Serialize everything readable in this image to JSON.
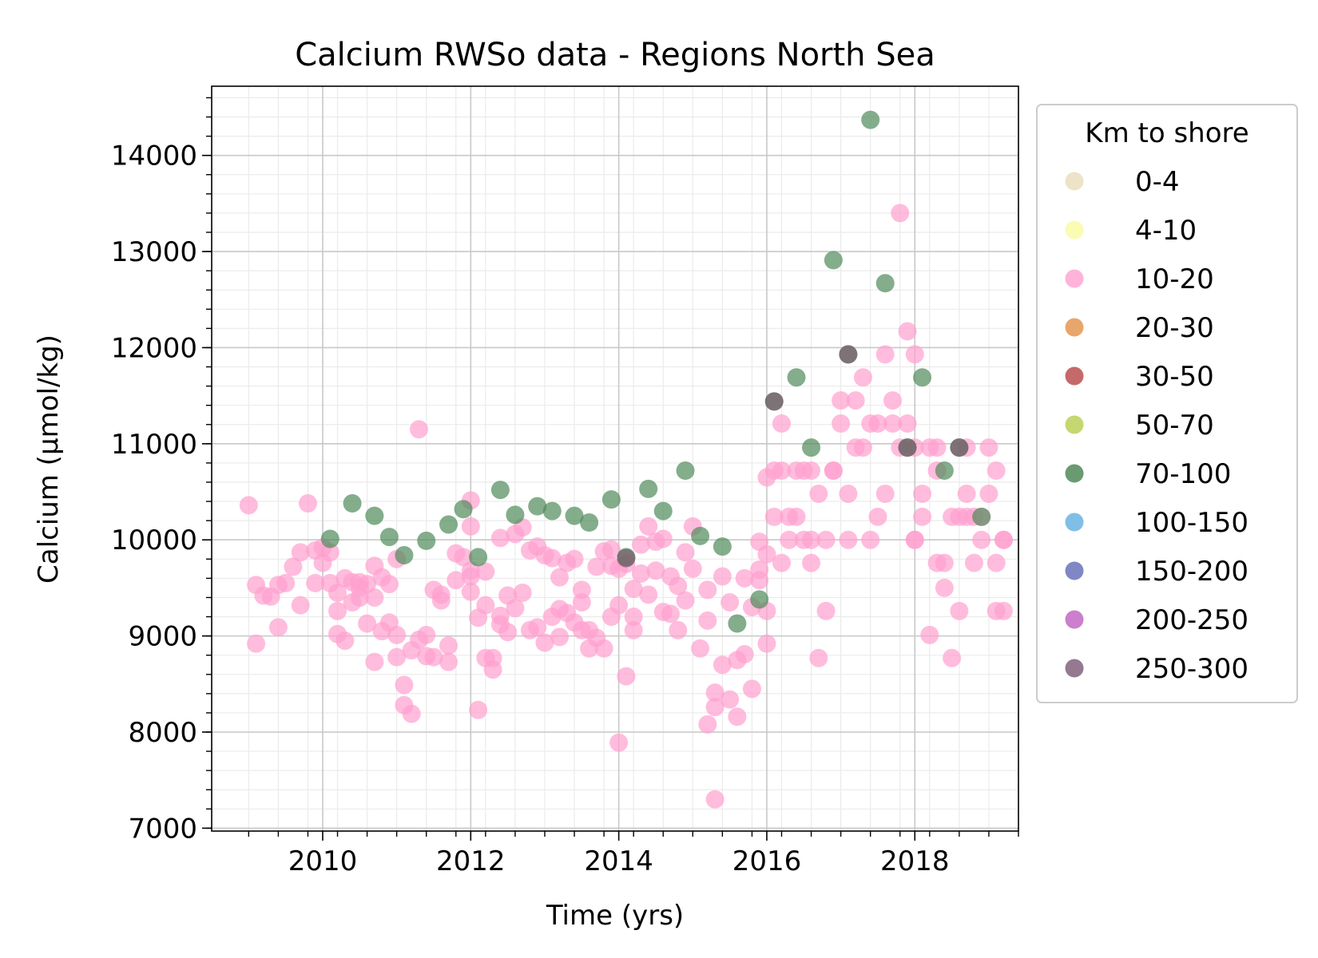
{
  "chart_data": {
    "type": "scatter",
    "title": "Calcium RWSo data - Regions North Sea",
    "xlabel": "Time (yrs)",
    "ylabel": "Calcium (µmol/kg)",
    "xlim": [
      2008.5,
      2019.4
    ],
    "ylim": [
      6970,
      14720
    ],
    "x_ticks": [
      2010,
      2012,
      2014,
      2016,
      2018
    ],
    "y_ticks": [
      7000,
      8000,
      9000,
      10000,
      11000,
      12000,
      13000,
      14000
    ],
    "grid": true,
    "legend": {
      "title": "Km to shore",
      "placement": "outside-right",
      "entries": [
        {
          "label": "0-4",
          "color": "#ede3c8"
        },
        {
          "label": "4-10",
          "color": "#fbfbb4"
        },
        {
          "label": "10-20",
          "color": "#ffb3d9"
        },
        {
          "label": "20-30",
          "color": "#e9a66b"
        },
        {
          "label": "30-50",
          "color": "#c46a6a"
        },
        {
          "label": "50-70",
          "color": "#c4d770"
        },
        {
          "label": "70-100",
          "color": "#6a9a72"
        },
        {
          "label": "100-150",
          "color": "#7fbfe6"
        },
        {
          "label": "150-200",
          "color": "#7f87c5"
        },
        {
          "label": "200-250",
          "color": "#cc7fcc"
        },
        {
          "label": "250-300",
          "color": "#94798f"
        }
      ]
    },
    "series": [
      {
        "name": "10-20",
        "color": "#ff9fcf",
        "points": [
          [
            2009.0,
            10360
          ],
          [
            2009.1,
            9530
          ],
          [
            2009.1,
            8920
          ],
          [
            2009.2,
            9420
          ],
          [
            2009.3,
            9410
          ],
          [
            2009.4,
            9530
          ],
          [
            2009.4,
            9090
          ],
          [
            2009.5,
            9550
          ],
          [
            2009.6,
            9720
          ],
          [
            2009.7,
            9870
          ],
          [
            2009.7,
            9320
          ],
          [
            2009.8,
            10380
          ],
          [
            2009.9,
            9550
          ],
          [
            2009.9,
            9890
          ],
          [
            2010.0,
            9760
          ],
          [
            2010.0,
            9920
          ],
          [
            2010.1,
            9870
          ],
          [
            2010.1,
            9550
          ],
          [
            2010.2,
            9450
          ],
          [
            2010.2,
            9260
          ],
          [
            2010.2,
            9020
          ],
          [
            2010.3,
            9600
          ],
          [
            2010.3,
            8950
          ],
          [
            2010.4,
            9560
          ],
          [
            2010.4,
            9350
          ],
          [
            2010.5,
            9560
          ],
          [
            2010.5,
            9500
          ],
          [
            2010.5,
            9400
          ],
          [
            2010.6,
            9540
          ],
          [
            2010.6,
            9130
          ],
          [
            2010.7,
            9400
          ],
          [
            2010.7,
            8730
          ],
          [
            2010.7,
            9730
          ],
          [
            2010.8,
            9050
          ],
          [
            2010.8,
            9610
          ],
          [
            2010.9,
            9140
          ],
          [
            2010.9,
            9540
          ],
          [
            2011.0,
            8780
          ],
          [
            2011.0,
            9010
          ],
          [
            2011.0,
            9800
          ],
          [
            2011.1,
            8490
          ],
          [
            2011.1,
            8280
          ],
          [
            2011.2,
            8850
          ],
          [
            2011.2,
            8190
          ],
          [
            2011.3,
            8960
          ],
          [
            2011.3,
            11150
          ],
          [
            2011.4,
            8790
          ],
          [
            2011.4,
            9010
          ],
          [
            2011.5,
            9480
          ],
          [
            2011.5,
            8780
          ],
          [
            2011.6,
            9430
          ],
          [
            2011.6,
            9370
          ],
          [
            2011.7,
            8900
          ],
          [
            2011.7,
            8730
          ],
          [
            2011.8,
            9860
          ],
          [
            2011.8,
            9580
          ],
          [
            2011.9,
            9820
          ],
          [
            2012.0,
            9620
          ],
          [
            2012.0,
            9680
          ],
          [
            2012.0,
            10410
          ],
          [
            2012.0,
            10140
          ],
          [
            2012.0,
            9460
          ],
          [
            2012.1,
            8230
          ],
          [
            2012.1,
            9190
          ],
          [
            2012.2,
            8770
          ],
          [
            2012.2,
            9320
          ],
          [
            2012.2,
            9670
          ],
          [
            2012.3,
            8770
          ],
          [
            2012.3,
            8650
          ],
          [
            2012.4,
            9210
          ],
          [
            2012.4,
            10020
          ],
          [
            2012.4,
            9120
          ],
          [
            2012.5,
            9040
          ],
          [
            2012.5,
            9420
          ],
          [
            2012.6,
            9290
          ],
          [
            2012.6,
            10060
          ],
          [
            2012.7,
            9450
          ],
          [
            2012.7,
            10130
          ],
          [
            2012.8,
            9890
          ],
          [
            2012.8,
            9060
          ],
          [
            2012.9,
            9930
          ],
          [
            2012.9,
            9090
          ],
          [
            2013.0,
            9840
          ],
          [
            2013.0,
            8930
          ],
          [
            2013.1,
            9810
          ],
          [
            2013.1,
            9200
          ],
          [
            2013.2,
            9280
          ],
          [
            2013.2,
            8990
          ],
          [
            2013.2,
            9610
          ],
          [
            2013.3,
            9760
          ],
          [
            2013.3,
            9240
          ],
          [
            2013.4,
            9800
          ],
          [
            2013.4,
            9140
          ],
          [
            2013.5,
            9480
          ],
          [
            2013.5,
            9060
          ],
          [
            2013.5,
            9350
          ],
          [
            2013.6,
            9060
          ],
          [
            2013.6,
            8870
          ],
          [
            2013.7,
            9720
          ],
          [
            2013.7,
            8980
          ],
          [
            2013.8,
            8870
          ],
          [
            2013.8,
            9880
          ],
          [
            2013.9,
            9900
          ],
          [
            2013.9,
            9730
          ],
          [
            2013.9,
            9200
          ],
          [
            2014.0,
            9320
          ],
          [
            2014.0,
            7890
          ],
          [
            2014.0,
            9700
          ],
          [
            2014.1,
            8580
          ],
          [
            2014.1,
            9750
          ],
          [
            2014.2,
            9200
          ],
          [
            2014.2,
            9490
          ],
          [
            2014.2,
            9060
          ],
          [
            2014.3,
            9650
          ],
          [
            2014.3,
            9950
          ],
          [
            2014.4,
            9430
          ],
          [
            2014.4,
            10140
          ],
          [
            2014.5,
            9980
          ],
          [
            2014.5,
            9680
          ],
          [
            2014.6,
            9250
          ],
          [
            2014.6,
            10010
          ],
          [
            2014.7,
            9230
          ],
          [
            2014.7,
            9620
          ],
          [
            2014.8,
            9520
          ],
          [
            2014.8,
            9060
          ],
          [
            2014.9,
            9370
          ],
          [
            2014.9,
            9870
          ],
          [
            2015.0,
            10140
          ],
          [
            2015.0,
            9700
          ],
          [
            2015.1,
            8870
          ],
          [
            2015.2,
            8080
          ],
          [
            2015.2,
            9160
          ],
          [
            2015.2,
            9480
          ],
          [
            2015.3,
            8410
          ],
          [
            2015.3,
            8260
          ],
          [
            2015.3,
            7300
          ],
          [
            2015.4,
            9620
          ],
          [
            2015.4,
            8700
          ],
          [
            2015.5,
            8340
          ],
          [
            2015.5,
            9350
          ],
          [
            2015.6,
            8160
          ],
          [
            2015.6,
            8750
          ],
          [
            2015.7,
            8810
          ],
          [
            2015.7,
            9600
          ],
          [
            2015.8,
            8450
          ],
          [
            2015.8,
            9300
          ],
          [
            2015.9,
            9580
          ],
          [
            2015.9,
            9690
          ],
          [
            2015.9,
            9980
          ],
          [
            2016.0,
            9260
          ],
          [
            2016.0,
            8920
          ],
          [
            2016.0,
            9850
          ],
          [
            2016.0,
            10650
          ],
          [
            2016.1,
            10720
          ],
          [
            2016.1,
            10240
          ],
          [
            2016.2,
            11210
          ],
          [
            2016.2,
            10720
          ],
          [
            2016.2,
            9760
          ],
          [
            2016.3,
            10240
          ],
          [
            2016.3,
            10000
          ],
          [
            2016.4,
            10720
          ],
          [
            2016.4,
            10240
          ],
          [
            2016.5,
            10720
          ],
          [
            2016.5,
            10000
          ],
          [
            2016.6,
            10720
          ],
          [
            2016.6,
            9760
          ],
          [
            2016.6,
            10000
          ],
          [
            2016.7,
            10480
          ],
          [
            2016.7,
            8770
          ],
          [
            2016.8,
            9260
          ],
          [
            2016.8,
            10000
          ],
          [
            2016.9,
            10720
          ],
          [
            2016.9,
            10720
          ],
          [
            2017.0,
            11450
          ],
          [
            2017.0,
            11210
          ],
          [
            2017.1,
            10480
          ],
          [
            2017.1,
            10000
          ],
          [
            2017.2,
            11450
          ],
          [
            2017.2,
            10960
          ],
          [
            2017.3,
            11690
          ],
          [
            2017.3,
            10960
          ],
          [
            2017.4,
            10000
          ],
          [
            2017.4,
            11210
          ],
          [
            2017.5,
            10240
          ],
          [
            2017.5,
            11210
          ],
          [
            2017.6,
            11930
          ],
          [
            2017.6,
            10480
          ],
          [
            2017.7,
            11450
          ],
          [
            2017.7,
            11210
          ],
          [
            2017.8,
            13400
          ],
          [
            2017.8,
            10960
          ],
          [
            2017.9,
            12170
          ],
          [
            2017.9,
            11210
          ],
          [
            2018.0,
            11930
          ],
          [
            2018.0,
            10960
          ],
          [
            2018.0,
            10000
          ],
          [
            2018.0,
            10000
          ],
          [
            2018.1,
            10480
          ],
          [
            2018.1,
            10240
          ],
          [
            2018.2,
            9010
          ],
          [
            2018.2,
            10960
          ],
          [
            2018.3,
            10720
          ],
          [
            2018.3,
            9760
          ],
          [
            2018.3,
            10960
          ],
          [
            2018.4,
            9760
          ],
          [
            2018.4,
            9500
          ],
          [
            2018.5,
            8770
          ],
          [
            2018.5,
            10240
          ],
          [
            2018.6,
            9260
          ],
          [
            2018.6,
            10240
          ],
          [
            2018.7,
            10240
          ],
          [
            2018.7,
            10960
          ],
          [
            2018.7,
            10480
          ],
          [
            2018.8,
            9760
          ],
          [
            2018.8,
            10240
          ],
          [
            2018.9,
            10240
          ],
          [
            2018.9,
            10000
          ],
          [
            2019.0,
            10480
          ],
          [
            2019.0,
            10960
          ],
          [
            2019.1,
            9760
          ],
          [
            2019.1,
            10720
          ],
          [
            2019.1,
            9260
          ],
          [
            2019.2,
            9260
          ],
          [
            2019.2,
            10000
          ],
          [
            2019.2,
            10000
          ]
        ]
      },
      {
        "name": "70-100",
        "color": "#4f8a5a",
        "points": [
          [
            2010.1,
            10010
          ],
          [
            2010.4,
            10380
          ],
          [
            2010.7,
            10250
          ],
          [
            2010.9,
            10030
          ],
          [
            2011.1,
            9840
          ],
          [
            2011.4,
            9990
          ],
          [
            2011.7,
            10160
          ],
          [
            2011.9,
            10320
          ],
          [
            2012.1,
            9820
          ],
          [
            2012.4,
            10520
          ],
          [
            2012.6,
            10260
          ],
          [
            2012.9,
            10350
          ],
          [
            2013.1,
            10300
          ],
          [
            2013.4,
            10250
          ],
          [
            2013.6,
            10180
          ],
          [
            2013.9,
            10420
          ],
          [
            2014.1,
            9820
          ],
          [
            2014.4,
            10530
          ],
          [
            2014.6,
            10300
          ],
          [
            2014.9,
            10720
          ],
          [
            2015.1,
            10040
          ],
          [
            2015.4,
            9930
          ],
          [
            2015.6,
            9130
          ],
          [
            2015.9,
            9380
          ],
          [
            2016.1,
            11440
          ],
          [
            2016.4,
            11690
          ],
          [
            2016.6,
            10960
          ],
          [
            2016.9,
            12910
          ],
          [
            2017.1,
            11930
          ],
          [
            2017.4,
            14370
          ],
          [
            2017.6,
            12670
          ],
          [
            2017.9,
            10960
          ],
          [
            2018.1,
            11690
          ],
          [
            2018.4,
            10720
          ],
          [
            2018.6,
            10960
          ],
          [
            2018.9,
            10240
          ]
        ]
      },
      {
        "name": "250-300",
        "color": "#7a5a6e",
        "points": [
          [
            2014.1,
            9810
          ],
          [
            2016.1,
            11440
          ],
          [
            2017.1,
            11930
          ],
          [
            2017.9,
            10960
          ],
          [
            2018.6,
            10960
          ]
        ]
      }
    ]
  }
}
